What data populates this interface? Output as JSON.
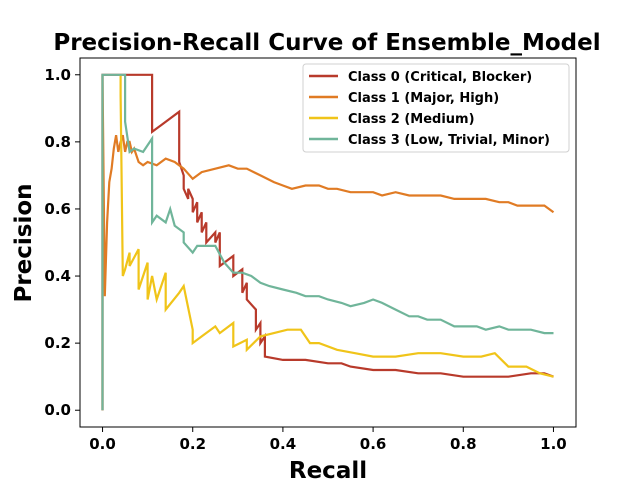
{
  "chart_data": {
    "type": "line",
    "title": "Precision-Recall Curve of Ensemble_Model",
    "xlabel": "Recall",
    "ylabel": "Precision",
    "xlim": [
      -0.05,
      1.05
    ],
    "ylim": [
      -0.05,
      1.05
    ],
    "xticks": [
      0.0,
      0.2,
      0.4,
      0.6,
      0.8,
      1.0
    ],
    "xtick_labels": [
      "0.0",
      "0.2",
      "0.4",
      "0.6",
      "0.8",
      "1.0"
    ],
    "yticks": [
      0.0,
      0.2,
      0.4,
      0.6,
      0.8,
      1.0
    ],
    "ytick_labels": [
      "0.0",
      "0.2",
      "0.4",
      "0.6",
      "0.8",
      "1.0"
    ],
    "grid": false,
    "legend_position": "top-right",
    "series": [
      {
        "name": "Class 0 (Critical, Blocker)",
        "color": "#b83a2b",
        "x": [
          0.0,
          0.0,
          0.11,
          0.11,
          0.13,
          0.17,
          0.17,
          0.18,
          0.18,
          0.19,
          0.19,
          0.2,
          0.2,
          0.21,
          0.21,
          0.22,
          0.22,
          0.23,
          0.23,
          0.25,
          0.25,
          0.26,
          0.26,
          0.29,
          0.29,
          0.31,
          0.31,
          0.32,
          0.32,
          0.34,
          0.34,
          0.35,
          0.35,
          0.36,
          0.36,
          0.4,
          0.45,
          0.5,
          0.53,
          0.55,
          0.6,
          0.65,
          0.7,
          0.75,
          0.8,
          0.85,
          0.9,
          0.95,
          0.98,
          1.0
        ],
        "y": [
          0.0,
          1.0,
          1.0,
          0.83,
          0.85,
          0.89,
          0.74,
          0.7,
          0.66,
          0.63,
          0.66,
          0.63,
          0.59,
          0.62,
          0.56,
          0.59,
          0.53,
          0.56,
          0.5,
          0.53,
          0.5,
          0.53,
          0.43,
          0.46,
          0.4,
          0.42,
          0.35,
          0.38,
          0.33,
          0.3,
          0.24,
          0.26,
          0.2,
          0.22,
          0.16,
          0.15,
          0.15,
          0.14,
          0.14,
          0.13,
          0.12,
          0.12,
          0.11,
          0.11,
          0.1,
          0.1,
          0.1,
          0.11,
          0.11,
          0.1
        ]
      },
      {
        "name": "Class 1 (Major, High)",
        "color": "#e07b24",
        "x": [
          0.0,
          0.0,
          0.005,
          0.01,
          0.015,
          0.02,
          0.025,
          0.03,
          0.035,
          0.04,
          0.045,
          0.05,
          0.055,
          0.06,
          0.065,
          0.07,
          0.08,
          0.09,
          0.1,
          0.12,
          0.14,
          0.16,
          0.18,
          0.2,
          0.22,
          0.25,
          0.28,
          0.3,
          0.32,
          0.35,
          0.38,
          0.4,
          0.42,
          0.45,
          0.48,
          0.5,
          0.52,
          0.55,
          0.58,
          0.6,
          0.62,
          0.65,
          0.68,
          0.7,
          0.72,
          0.75,
          0.78,
          0.8,
          0.82,
          0.85,
          0.88,
          0.9,
          0.92,
          0.95,
          0.98,
          1.0
        ],
        "y": [
          0.0,
          1.0,
          0.34,
          0.56,
          0.68,
          0.72,
          0.78,
          0.82,
          0.77,
          0.8,
          0.82,
          0.77,
          0.8,
          0.8,
          0.77,
          0.78,
          0.74,
          0.73,
          0.74,
          0.73,
          0.75,
          0.74,
          0.72,
          0.69,
          0.71,
          0.72,
          0.73,
          0.72,
          0.72,
          0.7,
          0.68,
          0.67,
          0.66,
          0.67,
          0.67,
          0.66,
          0.66,
          0.65,
          0.65,
          0.65,
          0.64,
          0.65,
          0.64,
          0.64,
          0.64,
          0.64,
          0.63,
          0.63,
          0.63,
          0.63,
          0.62,
          0.62,
          0.61,
          0.61,
          0.61,
          0.59
        ]
      },
      {
        "name": "Class 2 (Medium)",
        "color": "#f0c419",
        "x": [
          0.04,
          0.04,
          0.045,
          0.05,
          0.06,
          0.06,
          0.08,
          0.08,
          0.1,
          0.1,
          0.11,
          0.12,
          0.13,
          0.14,
          0.14,
          0.17,
          0.18,
          0.2,
          0.2,
          0.22,
          0.25,
          0.26,
          0.29,
          0.29,
          0.32,
          0.32,
          0.35,
          0.38,
          0.41,
          0.44,
          0.46,
          0.48,
          0.52,
          0.56,
          0.6,
          0.65,
          0.7,
          0.75,
          0.8,
          0.84,
          0.87,
          0.9,
          0.94,
          0.97,
          1.0
        ],
        "y": [
          1.0,
          0.94,
          0.4,
          0.42,
          0.47,
          0.43,
          0.48,
          0.36,
          0.44,
          0.33,
          0.4,
          0.33,
          0.37,
          0.41,
          0.3,
          0.35,
          0.37,
          0.24,
          0.2,
          0.22,
          0.25,
          0.23,
          0.26,
          0.19,
          0.21,
          0.18,
          0.22,
          0.23,
          0.24,
          0.24,
          0.2,
          0.2,
          0.18,
          0.17,
          0.16,
          0.16,
          0.17,
          0.17,
          0.16,
          0.16,
          0.17,
          0.13,
          0.13,
          0.11,
          0.1
        ]
      },
      {
        "name": "Class 3 (Low, Trivial, Minor)",
        "color": "#70b59a",
        "x": [
          0.0,
          0.0,
          0.05,
          0.05,
          0.06,
          0.07,
          0.09,
          0.11,
          0.11,
          0.12,
          0.14,
          0.15,
          0.16,
          0.18,
          0.18,
          0.2,
          0.21,
          0.23,
          0.25,
          0.27,
          0.29,
          0.31,
          0.33,
          0.35,
          0.37,
          0.4,
          0.43,
          0.45,
          0.48,
          0.5,
          0.53,
          0.55,
          0.58,
          0.6,
          0.62,
          0.65,
          0.68,
          0.7,
          0.72,
          0.75,
          0.78,
          0.8,
          0.83,
          0.85,
          0.88,
          0.9,
          0.93,
          0.95,
          0.98,
          1.0
        ],
        "y": [
          0.0,
          1.0,
          1.0,
          0.86,
          0.77,
          0.78,
          0.77,
          0.81,
          0.56,
          0.58,
          0.56,
          0.6,
          0.55,
          0.53,
          0.5,
          0.47,
          0.49,
          0.49,
          0.49,
          0.44,
          0.41,
          0.41,
          0.4,
          0.38,
          0.37,
          0.36,
          0.35,
          0.34,
          0.34,
          0.33,
          0.32,
          0.31,
          0.32,
          0.33,
          0.32,
          0.3,
          0.28,
          0.28,
          0.27,
          0.27,
          0.25,
          0.25,
          0.25,
          0.24,
          0.25,
          0.24,
          0.24,
          0.24,
          0.23,
          0.23
        ]
      }
    ]
  }
}
